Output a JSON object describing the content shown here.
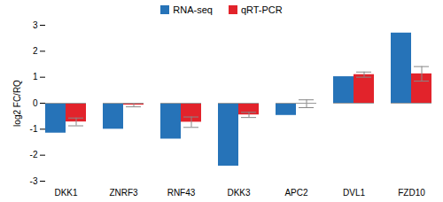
{
  "chart_data": {
    "type": "bar",
    "categories": [
      "DKK1",
      "ZNRF3",
      "RNF43",
      "DKK3",
      "APC2",
      "DVL1",
      "FZD10"
    ],
    "series": [
      {
        "name": "RNA-seq",
        "color": "#2673b8",
        "values": [
          -1.15,
          -1.0,
          -1.38,
          -2.42,
          -0.47,
          1.02,
          2.7
        ]
      },
      {
        "name": "qRT-PCR",
        "color": "#e2232b",
        "values": [
          -0.72,
          -0.07,
          -0.73,
          -0.45,
          -0.02,
          1.1,
          1.13
        ],
        "errors": [
          0.15,
          0.07,
          0.2,
          0.1,
          0.15,
          0.1,
          0.28
        ]
      }
    ],
    "y_label": "log2 FC/RQ",
    "ylim": [
      -3,
      3
    ],
    "yticks": [
      -3,
      -2,
      -1,
      0,
      1,
      2,
      3
    ],
    "grid": false,
    "legend": "top"
  }
}
